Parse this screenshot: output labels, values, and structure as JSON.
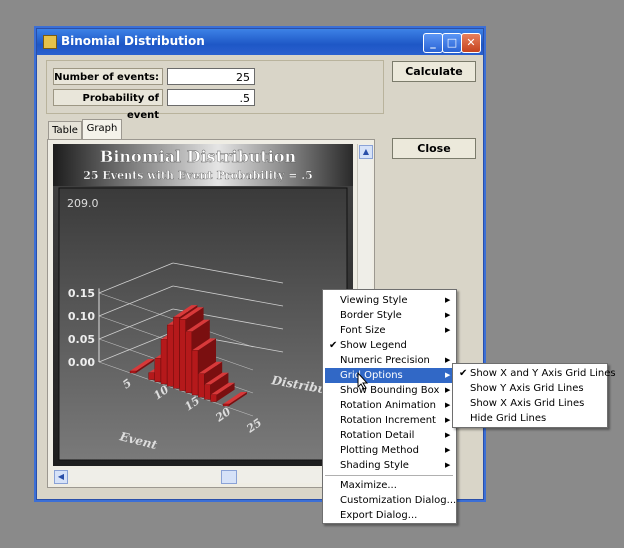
{
  "window": {
    "title": "Binomial Distribution"
  },
  "form": {
    "events_label": "Number of events:",
    "events_value": "25",
    "prob_label": "Probability of event",
    "prob_value": ".5"
  },
  "buttons": {
    "calculate": "Calculate",
    "close": "Close"
  },
  "tabs": [
    {
      "label": "Table"
    },
    {
      "label": "Graph",
      "selected": true
    }
  ],
  "chart": {
    "title": "Binomial Distribution",
    "subtitle": "25 Events with Event Probability = .5",
    "readout": "209.0",
    "yticks": [
      "0.15",
      "0.10",
      "0.05",
      "0.00"
    ],
    "xticks": [
      "5",
      "10",
      "15",
      "20",
      "25"
    ],
    "xlabel": "Event",
    "zlabel": "Distribution"
  },
  "chart_data": {
    "type": "bar",
    "title": "Binomial Distribution",
    "subtitle": "25 Events with Event Probability = .5",
    "xlabel": "Event",
    "zlabel": "Distribution",
    "x": [
      5,
      8,
      9,
      10,
      11,
      12,
      13,
      14,
      15,
      16,
      17,
      18,
      20
    ],
    "values": [
      0.002,
      0.015,
      0.051,
      0.097,
      0.133,
      0.155,
      0.155,
      0.133,
      0.097,
      0.051,
      0.032,
      0.015,
      0.002
    ],
    "ylim": [
      0,
      0.16
    ],
    "color": "#b5191b"
  },
  "context_menu": {
    "items": [
      {
        "label": "Viewing Style",
        "submenu": true
      },
      {
        "label": "Border Style",
        "submenu": true
      },
      {
        "label": "Font Size",
        "submenu": true
      },
      {
        "label": "Show Legend",
        "checked": true
      },
      {
        "label": "Numeric Precision",
        "submenu": true
      },
      {
        "label": "Grid Options",
        "submenu": true,
        "highlighted": true
      },
      {
        "label": "Show Bounding Box",
        "submenu": true
      },
      {
        "label": "Rotation Animation",
        "submenu": true
      },
      {
        "label": "Rotation Increment",
        "submenu": true
      },
      {
        "label": "Rotation Detail",
        "submenu": true
      },
      {
        "label": "Plotting Method",
        "submenu": true
      },
      {
        "label": "Shading Style",
        "submenu": true
      },
      {
        "label": "Maximize..."
      },
      {
        "label": "Customization Dialog..."
      },
      {
        "label": "Export Dialog..."
      }
    ]
  },
  "submenu": {
    "items": [
      {
        "label": "Show X and Y Axis Grid Lines",
        "checked": true
      },
      {
        "label": "Show Y Axis Grid Lines"
      },
      {
        "label": "Show X Axis Grid Lines"
      },
      {
        "label": "Hide Grid Lines"
      }
    ]
  },
  "colors": {
    "titlebar": "#2a60cf",
    "window_bg": "#d9d5c8",
    "menu_highlight": "#3168c6",
    "bar": "#b5191b"
  }
}
